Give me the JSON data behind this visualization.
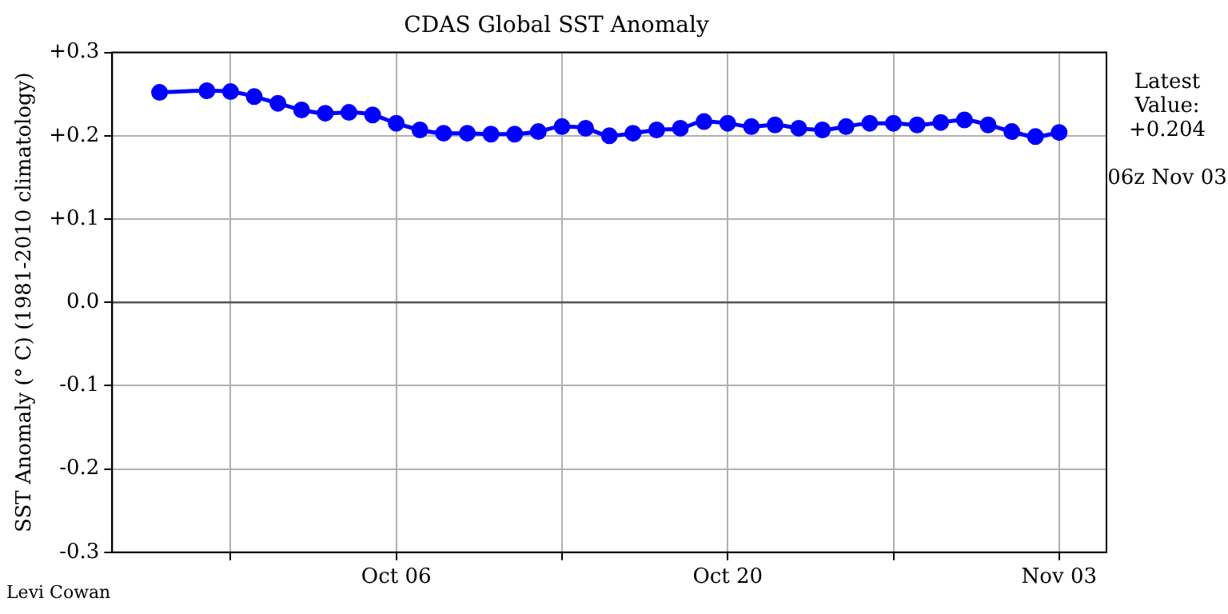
{
  "chart_data": {
    "type": "line",
    "title": "CDAS Global SST Anomaly",
    "ylabel": "SST Anomaly (° C) (1981-2010 climatology)",
    "x": [
      "--09-26",
      "--09-28",
      "--09-29",
      "--09-30",
      "--10-01",
      "--10-02",
      "--10-03",
      "--10-04",
      "--10-05",
      "--10-06",
      "--10-07",
      "--10-08",
      "--10-09",
      "--10-10",
      "--10-11",
      "--10-12",
      "--10-13",
      "--10-14",
      "--10-15",
      "--10-16",
      "--10-17",
      "--10-18",
      "--10-19",
      "--10-20",
      "--10-21",
      "--10-22",
      "--10-23",
      "--10-24",
      "--10-25",
      "--10-26",
      "--10-27",
      "--10-28",
      "--10-29",
      "--10-30",
      "--10-31",
      "--11-01",
      "--11-02",
      "--11-03"
    ],
    "series": [
      {
        "color": "#0000ff",
        "values": [
          0.252,
          0.254,
          0.253,
          0.247,
          0.239,
          0.231,
          0.227,
          0.228,
          0.225,
          0.215,
          0.207,
          0.203,
          0.203,
          0.202,
          0.202,
          0.205,
          0.211,
          0.209,
          0.2,
          0.203,
          0.207,
          0.209,
          0.217,
          0.215,
          0.211,
          0.213,
          0.209,
          0.207,
          0.211,
          0.215,
          0.215,
          0.213,
          0.216,
          0.219,
          0.213,
          0.205,
          0.199,
          0.204
        ]
      }
    ],
    "xlim": [
      "--09-24",
      "--11-05"
    ],
    "xticks": [
      {
        "value": "--09-29",
        "label": null
      },
      {
        "value": "--10-06",
        "label": "Oct 06"
      },
      {
        "value": "--10-13",
        "label": null
      },
      {
        "value": "--10-20",
        "label": "Oct 20"
      },
      {
        "value": "--10-27",
        "label": null
      },
      {
        "value": "--11-03",
        "label": "Nov 03"
      }
    ],
    "ylim": [
      -0.3,
      0.3
    ],
    "yticks": [
      {
        "value": -0.3,
        "label": "-0.3"
      },
      {
        "value": -0.2,
        "label": "-0.2"
      },
      {
        "value": -0.1,
        "label": "-0.1"
      },
      {
        "value": 0,
        "label": "0.0"
      },
      {
        "value": 0.1,
        "label": "+0.1"
      },
      {
        "value": 0.2,
        "label": "+0.2"
      },
      {
        "value": 0.3,
        "label": "+0.3"
      }
    ],
    "ref_lines": [
      {
        "axis": "y",
        "value": 0,
        "color": "#555555"
      }
    ],
    "grid": true,
    "marker": "circle",
    "line_style": "solid",
    "annotations": [
      "Latest Value: +0.204",
      "06z Nov 03",
      "Levi Cowan"
    ]
  }
}
